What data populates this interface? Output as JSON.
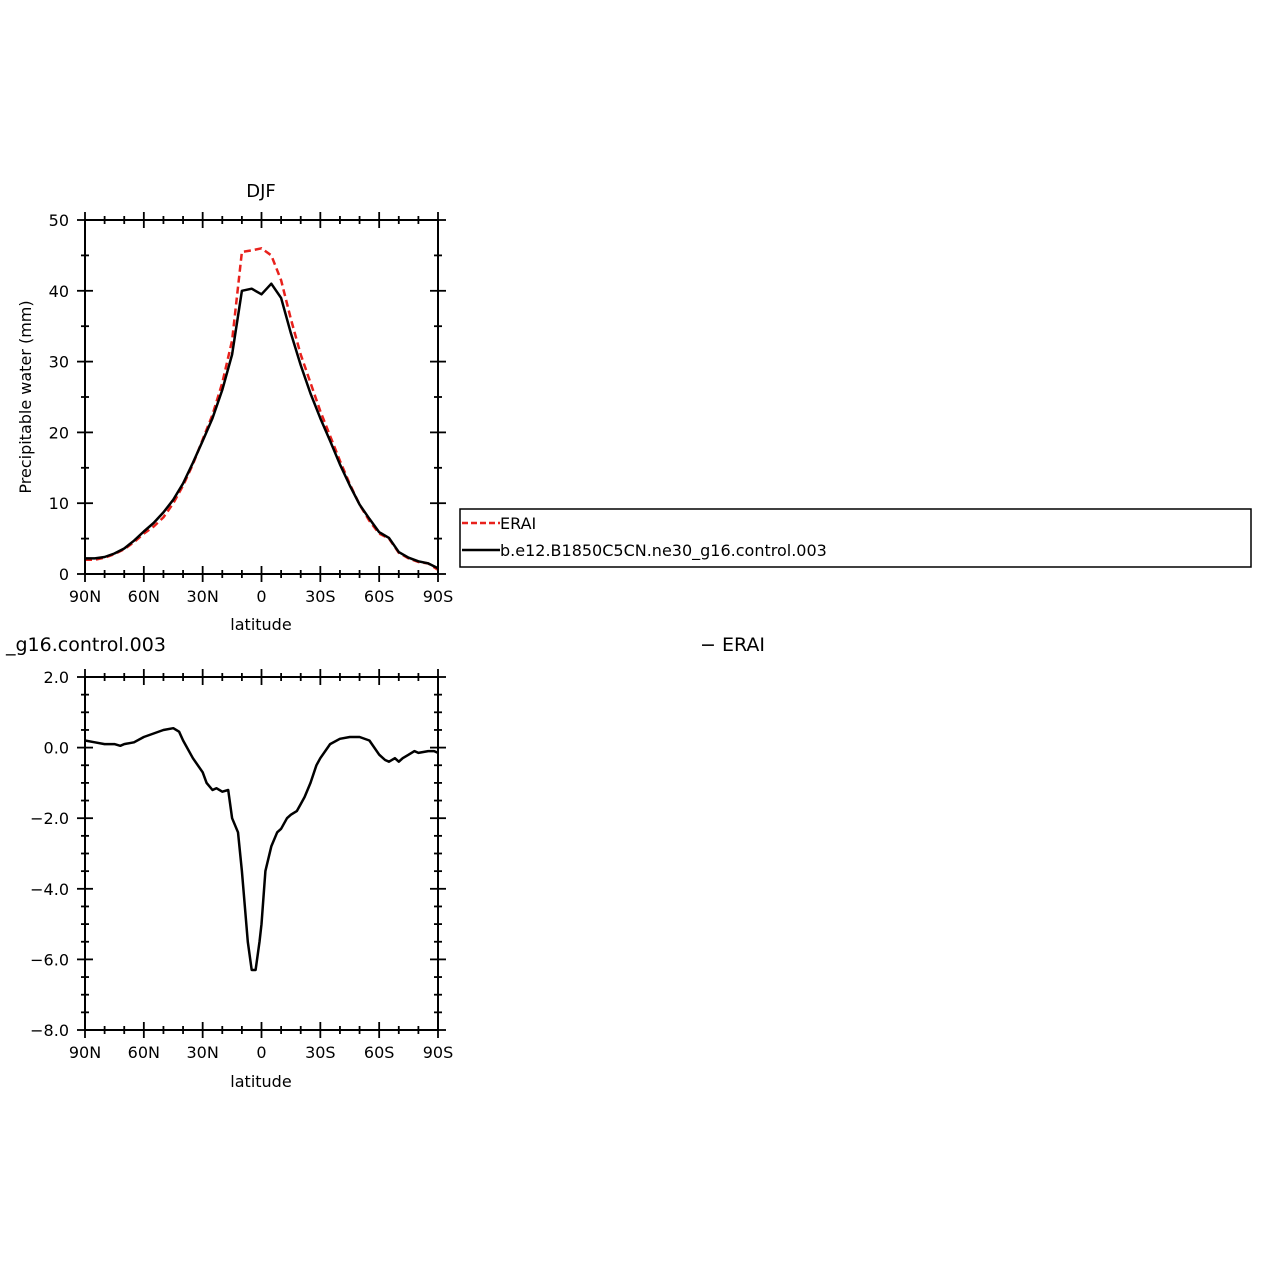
{
  "chart_data": [
    {
      "type": "line",
      "title": "DJF",
      "xlabel": "latitude",
      "ylabel": "Precipitable water (mm)",
      "xlim": [
        90,
        -90
      ],
      "ylim": [
        0,
        50
      ],
      "x_ticks": [
        90,
        60,
        30,
        0,
        -30,
        -60,
        -90
      ],
      "x_tick_labels": [
        "90N",
        "60N",
        "30N",
        "0",
        "30S",
        "60S",
        "90S"
      ],
      "y_ticks": [
        0,
        10,
        20,
        30,
        40,
        50
      ],
      "y_tick_labels": [
        "0",
        "10",
        "20",
        "30",
        "40",
        "50"
      ],
      "legend": "outside-right",
      "series": [
        {
          "name": "ERAI",
          "color": "#e8211c",
          "dash": "dashed",
          "x": [
            90,
            85,
            80,
            75,
            70,
            65,
            60,
            55,
            50,
            45,
            40,
            35,
            30,
            25,
            20,
            15,
            10,
            5,
            0,
            -5,
            -10,
            -15,
            -20,
            -25,
            -30,
            -35,
            -40,
            -45,
            -50,
            -55,
            -60,
            -65,
            -70,
            -75,
            -80,
            -85,
            -90
          ],
          "y": [
            2.0,
            2.0,
            2.3,
            2.8,
            3.5,
            4.5,
            5.7,
            6.7,
            8.0,
            10.0,
            12.5,
            15.5,
            19.0,
            22.5,
            27.0,
            33.0,
            45.5,
            45.7,
            46.0,
            45.0,
            41.5,
            36.0,
            31.0,
            27.0,
            23.0,
            19.5,
            16.0,
            12.7,
            9.8,
            7.5,
            5.7,
            5.0,
            3.0,
            2.2,
            1.7,
            1.5,
            0.6
          ]
        },
        {
          "name": "b.e12.B1850C5CN.ne30_g16.control.003",
          "color": "#000000",
          "dash": "solid",
          "x": [
            90,
            85,
            80,
            75,
            70,
            65,
            60,
            55,
            50,
            45,
            40,
            35,
            30,
            25,
            20,
            15,
            10,
            5,
            0,
            -5,
            -10,
            -15,
            -20,
            -25,
            -30,
            -35,
            -40,
            -45,
            -50,
            -55,
            -60,
            -65,
            -70,
            -75,
            -80,
            -85,
            -90
          ],
          "y": [
            2.2,
            2.2,
            2.4,
            2.9,
            3.6,
            4.7,
            6.0,
            7.2,
            8.7,
            10.5,
            12.8,
            15.7,
            18.8,
            22.0,
            26.0,
            31.0,
            40.0,
            40.3,
            39.5,
            41.0,
            39.0,
            34.0,
            29.5,
            25.5,
            22.0,
            18.8,
            15.5,
            12.5,
            9.8,
            7.8,
            5.9,
            5.1,
            3.1,
            2.3,
            1.8,
            1.5,
            0.8
          ]
        }
      ]
    },
    {
      "type": "line",
      "title": "_g16.control.003",
      "title_right": "− ERAI",
      "xlabel": "latitude",
      "ylabel": "Precipitable water (mm)",
      "xlim": [
        90,
        -90
      ],
      "ylim": [
        -8,
        2
      ],
      "x_ticks": [
        90,
        60,
        30,
        0,
        -30,
        -60,
        -90
      ],
      "x_tick_labels": [
        "90N",
        "60N",
        "30N",
        "0",
        "30S",
        "60S",
        "90S"
      ],
      "y_ticks": [
        -8,
        -6,
        -4,
        -2,
        0,
        2
      ],
      "y_tick_labels": [
        "−8.0",
        "−6.0",
        "−4.0",
        "−2.0",
        "0.0",
        "2.0"
      ],
      "series": [
        {
          "name": "",
          "color": "#000000",
          "dash": "solid",
          "x": [
            90,
            85,
            80,
            75,
            72,
            70,
            65,
            60,
            55,
            50,
            45,
            42,
            40,
            35,
            30,
            28,
            25,
            23,
            20,
            17,
            15,
            12,
            10,
            7,
            5,
            3,
            1,
            0,
            -2,
            -5,
            -8,
            -10,
            -13,
            -15,
            -18,
            -20,
            -22,
            -25,
            -28,
            -30,
            -35,
            -40,
            -45,
            -50,
            -55,
            -60,
            -63,
            -65,
            -68,
            -70,
            -72,
            -75,
            -78,
            -80,
            -85,
            -88,
            -90
          ],
          "y": [
            0.2,
            0.15,
            0.1,
            0.1,
            0.05,
            0.1,
            0.15,
            0.3,
            0.4,
            0.5,
            0.55,
            0.45,
            0.2,
            -0.3,
            -0.7,
            -1.0,
            -1.2,
            -1.15,
            -1.25,
            -1.2,
            -2.0,
            -2.4,
            -3.5,
            -5.5,
            -6.3,
            -6.3,
            -5.5,
            -5.0,
            -3.5,
            -2.8,
            -2.4,
            -2.3,
            -2.0,
            -1.9,
            -1.8,
            -1.6,
            -1.4,
            -1.0,
            -0.5,
            -0.3,
            0.1,
            0.25,
            0.3,
            0.3,
            0.2,
            -0.2,
            -0.35,
            -0.4,
            -0.3,
            -0.4,
            -0.3,
            -0.2,
            -0.1,
            -0.15,
            -0.1,
            -0.1,
            -0.15
          ]
        }
      ]
    }
  ],
  "legend_labels": [
    "ERAI",
    "b.e12.B1850C5CN.ne30_g16.control.003"
  ]
}
